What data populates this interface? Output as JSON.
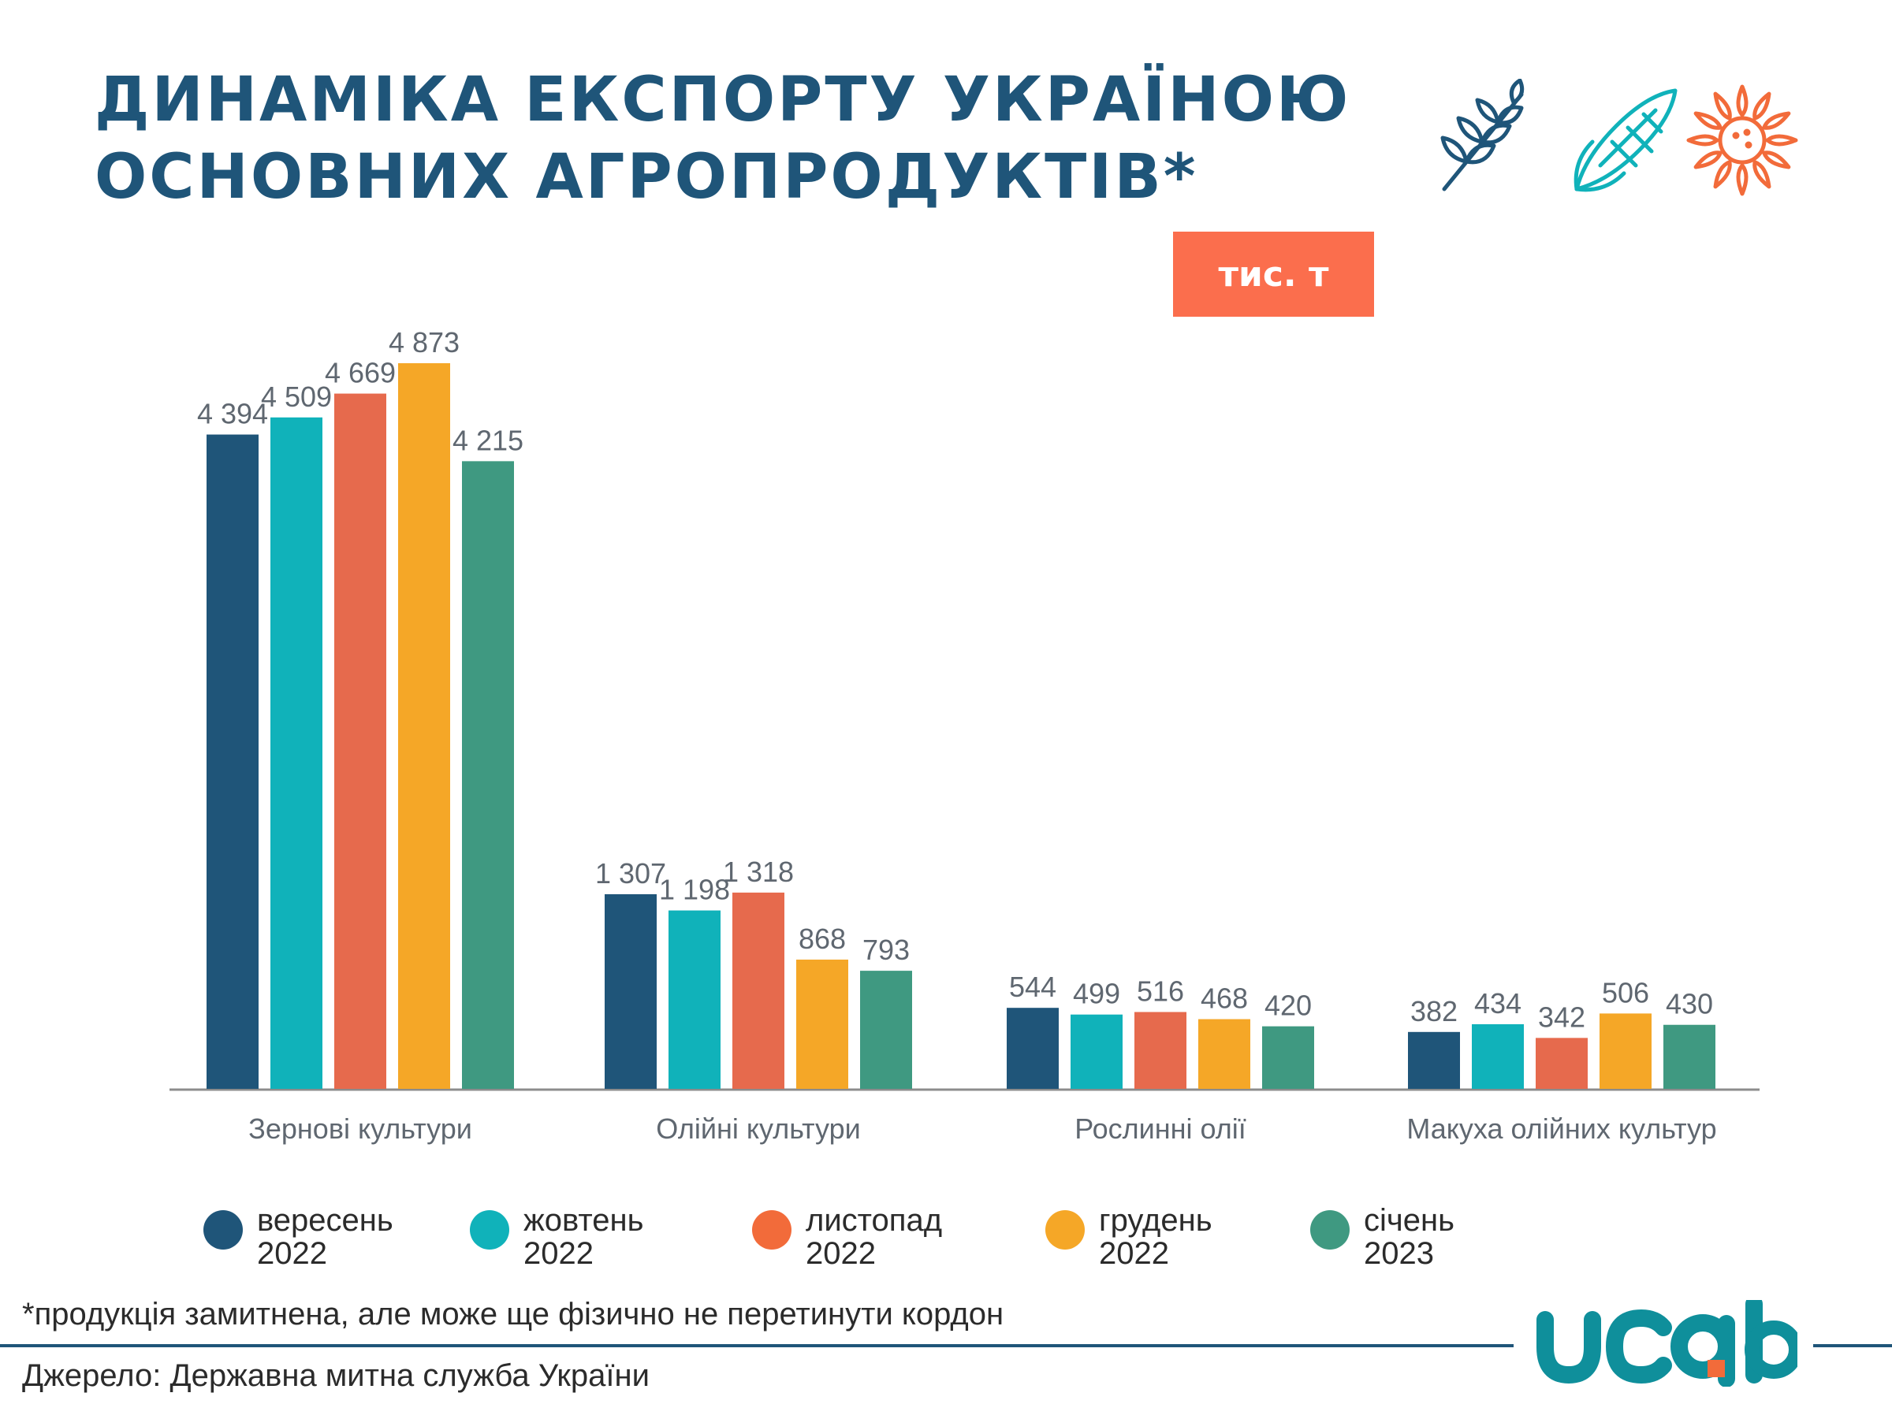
{
  "title": {
    "line1": "ДИНАМІКА ЕКСПОРТУ УКРАЇНОЮ",
    "line2": "ОСНОВНИХ АГРОПРОДУКТІВ*"
  },
  "unit_badge": "тис. т",
  "icons": [
    "wheat-icon",
    "corn-icon",
    "sunflower-icon"
  ],
  "colors": {
    "title": "#1f5579",
    "badge": "#fb6e4d",
    "series": [
      "#1f5579",
      "#10b2ba",
      "#e66a4d",
      "#f5a727",
      "#3f9981"
    ],
    "logo_text": "#0f8f9b",
    "logo_dot": "#f26b3a"
  },
  "chart_data": {
    "type": "bar",
    "categories": [
      "Зернові культури",
      "Олійні культури",
      "Рослинні олії",
      "Макуха олійних культур"
    ],
    "series": [
      {
        "name": "вересень 2022",
        "values": [
          4394,
          1307,
          544,
          382
        ],
        "labels": [
          "4 394",
          "1 307",
          "544",
          "382"
        ]
      },
      {
        "name": "жовтень 2022",
        "values": [
          4509,
          1198,
          499,
          434
        ],
        "labels": [
          "4 509",
          "1 198",
          "499",
          "434"
        ]
      },
      {
        "name": "листопад 2022",
        "values": [
          4669,
          1318,
          516,
          342
        ],
        "labels": [
          "4 669",
          "1 318",
          "516",
          "342"
        ]
      },
      {
        "name": "грудень 2022",
        "values": [
          4873,
          868,
          468,
          506
        ],
        "labels": [
          "4 873",
          "868",
          "468",
          "506"
        ]
      },
      {
        "name": "січень 2023",
        "values": [
          4215,
          793,
          420,
          430
        ],
        "labels": [
          "4 215",
          "793",
          "420",
          "430"
        ]
      }
    ],
    "ylim": [
      0,
      4873
    ],
    "grid": false,
    "legend_position": "bottom"
  },
  "legend": [
    {
      "line1": "вересень",
      "line2": "2022"
    },
    {
      "line1": "жовтень",
      "line2": "2022"
    },
    {
      "line1": "листопад",
      "line2": "2022"
    },
    {
      "line1": "грудень",
      "line2": "2022"
    },
    {
      "line1": "січень",
      "line2": "2023"
    }
  ],
  "footnote": "*продукція замитнена, але може ще фізично не перетинути кордон",
  "source": "Джерело: Державна митна служба України",
  "logo": "ucab"
}
